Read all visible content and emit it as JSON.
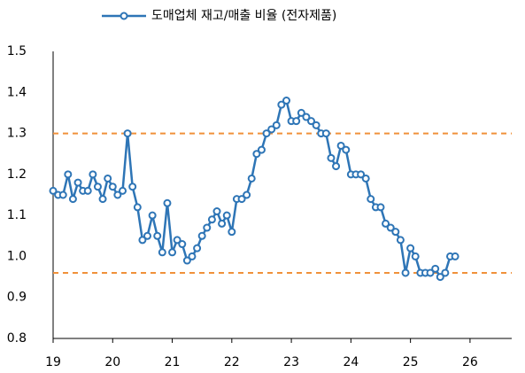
{
  "chart_data": {
    "type": "line",
    "series": [
      {
        "name": "도매업체 재고/매출 비율 (전자제품)",
        "color": "#2e75b6",
        "values": [
          1.16,
          1.15,
          1.15,
          1.2,
          1.14,
          1.18,
          1.16,
          1.16,
          1.2,
          1.17,
          1.14,
          1.19,
          1.17,
          1.15,
          1.16,
          1.3,
          1.17,
          1.12,
          1.04,
          1.05,
          1.1,
          1.05,
          1.01,
          1.13,
          1.01,
          1.04,
          1.03,
          0.99,
          1.0,
          1.02,
          1.05,
          1.07,
          1.09,
          1.11,
          1.08,
          1.1,
          1.06,
          1.14,
          1.14,
          1.15,
          1.19,
          1.25,
          1.26,
          1.3,
          1.31,
          1.32,
          1.37,
          1.38,
          1.33,
          1.33,
          1.35,
          1.34,
          1.33,
          1.32,
          1.3,
          1.3,
          1.24,
          1.22,
          1.27,
          1.26,
          1.2,
          1.2,
          1.2,
          1.19,
          1.14,
          1.12,
          1.12,
          1.08,
          1.07,
          1.06,
          1.04,
          0.96,
          1.02,
          1.0,
          0.96,
          0.96,
          0.96,
          0.97,
          0.95,
          0.96,
          1.0,
          1.0
        ]
      }
    ],
    "x": [
      19,
      19.083,
      19.167,
      19.25,
      19.333,
      19.417,
      19.5,
      19.583,
      19.667,
      19.75,
      19.833,
      19.917,
      20,
      20.083,
      20.167,
      20.25,
      20.333,
      20.417,
      20.5,
      20.583,
      20.667,
      20.75,
      20.833,
      20.917,
      21,
      21.083,
      21.167,
      21.25,
      21.333,
      21.417,
      21.5,
      21.583,
      21.667,
      21.75,
      21.833,
      21.917,
      22,
      22.083,
      22.167,
      22.25,
      22.333,
      22.417,
      22.5,
      22.583,
      22.667,
      22.75,
      22.833,
      22.917,
      23,
      23.083,
      23.167,
      23.25,
      23.333,
      23.417,
      23.5,
      23.583,
      23.667,
      23.75,
      23.833,
      23.917,
      24,
      24.083,
      24.167,
      24.25,
      24.333,
      24.417,
      24.5,
      24.583,
      24.667,
      24.75,
      24.833,
      24.917,
      25,
      25.083,
      25.167,
      25.25,
      25.333,
      25.417,
      25.5,
      25.583,
      25.667,
      25.75
    ],
    "xlim": [
      19,
      26.7
    ],
    "xticks": [
      19,
      20,
      21,
      22,
      23,
      24,
      25,
      26
    ],
    "ylim": [
      0.8,
      1.5
    ],
    "yticks": [
      0.8,
      0.9,
      {
        "value": 1.0,
        "label": "1.0"
      },
      1.1,
      1.2,
      1.3,
      1.4,
      1.5
    ],
    "reference_lines": [
      1.3,
      0.96
    ],
    "reference_color": "#f0913a",
    "legend": "top"
  }
}
